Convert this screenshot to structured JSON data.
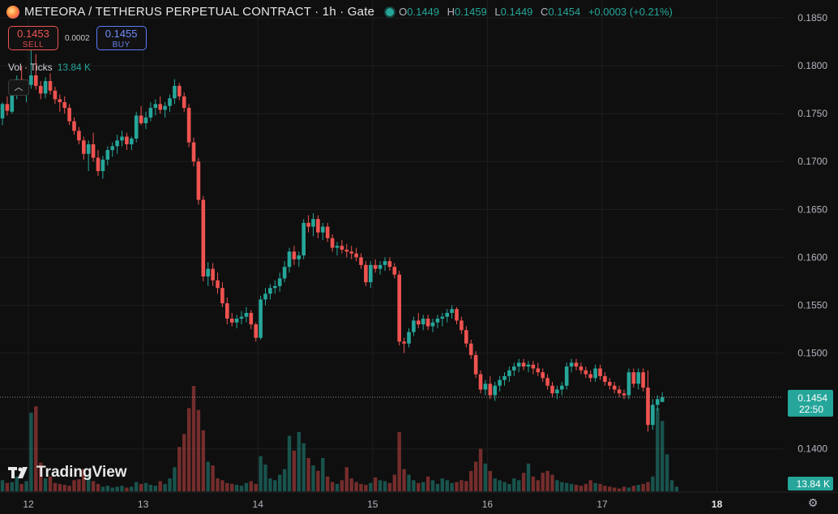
{
  "header": {
    "symbol": "METEORA / TETHERUS PERPETUAL CONTRACT · 1h · Gate",
    "o_label": "O",
    "o": "0.1449",
    "h_label": "H",
    "h": "0.1459",
    "l_label": "L",
    "l": "0.1449",
    "c_label": "C",
    "c": "0.1454",
    "change": "+0.0003 (+0.21%)"
  },
  "trade": {
    "sell_price": "0.1453",
    "sell_label": "SELL",
    "spread": "0.0002",
    "buy_price": "0.1455",
    "buy_label": "BUY"
  },
  "volume_legend": {
    "label": "Vol · Ticks",
    "value": "13.84 K"
  },
  "collapse_icon": "chevron-up-icon",
  "watermark": "TradingView",
  "colors": {
    "up": "#26a69a",
    "down": "#ef5350",
    "background": "#0f0f0f",
    "grid": "#1e1e1e",
    "text": "#b2b5be"
  },
  "chart_data": {
    "type": "candlestick",
    "timeframe": "1h",
    "ylim": [
      0.1365,
      0.186
    ],
    "y_ticks": [
      "0.1850",
      "0.1800",
      "0.1750",
      "0.1700",
      "0.1650",
      "0.1600",
      "0.1550",
      "0.1500",
      "0.1400"
    ],
    "x_ticks": [
      {
        "label": "12",
        "index": 3
      },
      {
        "label": "13",
        "index": 27
      },
      {
        "label": "14",
        "index": 51
      },
      {
        "label": "15",
        "index": 75
      },
      {
        "label": "16",
        "index": 99
      },
      {
        "label": "17",
        "index": 123
      },
      {
        "label": "18",
        "index": 147
      }
    ],
    "last_price": "0.1454",
    "countdown": "22:50",
    "volume_last": "13.84 K",
    "series": [
      {
        "name": "price",
        "ohlc": [
          [
            0.1745,
            0.1762,
            0.1738,
            0.176
          ],
          [
            0.176,
            0.1768,
            0.1748,
            0.1753
          ],
          [
            0.1752,
            0.1778,
            0.175,
            0.1772
          ],
          [
            0.1772,
            0.179,
            0.1765,
            0.1786
          ],
          [
            0.1786,
            0.18,
            0.177,
            0.1775
          ],
          [
            0.1775,
            0.1785,
            0.1762,
            0.178
          ],
          [
            0.178,
            0.183,
            0.1776,
            0.179
          ],
          [
            0.179,
            0.1812,
            0.1775,
            0.1779
          ],
          [
            0.1779,
            0.1784,
            0.1765,
            0.1771
          ],
          [
            0.1771,
            0.1788,
            0.1766,
            0.1784
          ],
          [
            0.1784,
            0.1792,
            0.177,
            0.1774
          ],
          [
            0.1774,
            0.1778,
            0.176,
            0.1765
          ],
          [
            0.1765,
            0.177,
            0.1752,
            0.1762
          ],
          [
            0.1762,
            0.1768,
            0.175,
            0.1756
          ],
          [
            0.1756,
            0.176,
            0.1738,
            0.1742
          ],
          [
            0.1742,
            0.1746,
            0.1728,
            0.1732
          ],
          [
            0.1732,
            0.1736,
            0.1718,
            0.1722
          ],
          [
            0.1722,
            0.1726,
            0.1702,
            0.1708
          ],
          [
            0.1708,
            0.1722,
            0.169,
            0.1718
          ],
          [
            0.1718,
            0.173,
            0.17,
            0.1704
          ],
          [
            0.1704,
            0.1712,
            0.1685,
            0.169
          ],
          [
            0.169,
            0.1706,
            0.1682,
            0.1702
          ],
          [
            0.1702,
            0.1716,
            0.1696,
            0.1712
          ],
          [
            0.1712,
            0.172,
            0.1705,
            0.1716
          ],
          [
            0.1716,
            0.1728,
            0.1708,
            0.1722
          ],
          [
            0.1722,
            0.1732,
            0.1716,
            0.1726
          ],
          [
            0.1726,
            0.173,
            0.1712,
            0.1718
          ],
          [
            0.1718,
            0.1726,
            0.1712,
            0.1724
          ],
          [
            0.1724,
            0.1752,
            0.172,
            0.1748
          ],
          [
            0.1748,
            0.1758,
            0.1738,
            0.174
          ],
          [
            0.174,
            0.1752,
            0.1734,
            0.1746
          ],
          [
            0.1746,
            0.1762,
            0.1742,
            0.1756
          ],
          [
            0.1756,
            0.1765,
            0.1748,
            0.176
          ],
          [
            0.176,
            0.1768,
            0.175,
            0.1754
          ],
          [
            0.1754,
            0.1762,
            0.1746,
            0.1758
          ],
          [
            0.1758,
            0.177,
            0.1752,
            0.1766
          ],
          [
            0.1766,
            0.1786,
            0.176,
            0.1779
          ],
          [
            0.1779,
            0.1782,
            0.1764,
            0.1768
          ],
          [
            0.1768,
            0.1772,
            0.1752,
            0.1756
          ],
          [
            0.1756,
            0.176,
            0.1715,
            0.172
          ],
          [
            0.172,
            0.1725,
            0.1695,
            0.17
          ],
          [
            0.17,
            0.1704,
            0.1655,
            0.166
          ],
          [
            0.166,
            0.1664,
            0.1575,
            0.158
          ],
          [
            0.158,
            0.1595,
            0.157,
            0.1588
          ],
          [
            0.1588,
            0.1594,
            0.157,
            0.1576
          ],
          [
            0.1576,
            0.1584,
            0.1562,
            0.1568
          ],
          [
            0.1568,
            0.1574,
            0.1548,
            0.1552
          ],
          [
            0.1552,
            0.1558,
            0.153,
            0.1536
          ],
          [
            0.1536,
            0.1542,
            0.1528,
            0.1532
          ],
          [
            0.1532,
            0.154,
            0.1526,
            0.1536
          ],
          [
            0.1536,
            0.1544,
            0.153,
            0.1538
          ],
          [
            0.1538,
            0.1548,
            0.1532,
            0.1542
          ],
          [
            0.1542,
            0.1545,
            0.1525,
            0.153
          ],
          [
            0.153,
            0.1532,
            0.1512,
            0.1516
          ],
          [
            0.1516,
            0.156,
            0.1514,
            0.1556
          ],
          [
            0.1556,
            0.1568,
            0.155,
            0.1562
          ],
          [
            0.1562,
            0.1572,
            0.1556,
            0.1568
          ],
          [
            0.1568,
            0.1576,
            0.1562,
            0.157
          ],
          [
            0.157,
            0.1584,
            0.1564,
            0.1578
          ],
          [
            0.1578,
            0.1596,
            0.1574,
            0.159
          ],
          [
            0.159,
            0.161,
            0.1584,
            0.1606
          ],
          [
            0.1606,
            0.1612,
            0.1592,
            0.1598
          ],
          [
            0.1598,
            0.1606,
            0.159,
            0.1602
          ],
          [
            0.1602,
            0.164,
            0.1598,
            0.1636
          ],
          [
            0.1636,
            0.1644,
            0.1626,
            0.1632
          ],
          [
            0.1632,
            0.1646,
            0.1622,
            0.164
          ],
          [
            0.164,
            0.1644,
            0.162,
            0.1626
          ],
          [
            0.1626,
            0.1636,
            0.1618,
            0.1632
          ],
          [
            0.1632,
            0.1636,
            0.1616,
            0.162
          ],
          [
            0.162,
            0.1624,
            0.1606,
            0.161
          ],
          [
            0.161,
            0.1616,
            0.1602,
            0.1612
          ],
          [
            0.1612,
            0.1618,
            0.1604,
            0.1608
          ],
          [
            0.1608,
            0.1614,
            0.16,
            0.1606
          ],
          [
            0.1606,
            0.1612,
            0.1598,
            0.1604
          ],
          [
            0.1604,
            0.161,
            0.1596,
            0.16
          ],
          [
            0.16,
            0.1604,
            0.1588,
            0.1592
          ],
          [
            0.1592,
            0.1596,
            0.157,
            0.1574
          ],
          [
            0.1574,
            0.1596,
            0.1568,
            0.1592
          ],
          [
            0.1592,
            0.1598,
            0.1584,
            0.1588
          ],
          [
            0.1588,
            0.1596,
            0.1582,
            0.1592
          ],
          [
            0.1592,
            0.16,
            0.1586,
            0.1596
          ],
          [
            0.1596,
            0.16,
            0.1586,
            0.159
          ],
          [
            0.159,
            0.1594,
            0.1578,
            0.1582
          ],
          [
            0.1582,
            0.1586,
            0.1508,
            0.1512
          ],
          [
            0.1512,
            0.1516,
            0.15,
            0.151
          ],
          [
            0.151,
            0.1526,
            0.1506,
            0.1522
          ],
          [
            0.1522,
            0.1538,
            0.1518,
            0.1534
          ],
          [
            0.1534,
            0.1542,
            0.1526,
            0.153
          ],
          [
            0.153,
            0.154,
            0.1524,
            0.1536
          ],
          [
            0.1536,
            0.154,
            0.1524,
            0.1528
          ],
          [
            0.1528,
            0.1536,
            0.1522,
            0.1532
          ],
          [
            0.1532,
            0.154,
            0.1526,
            0.1536
          ],
          [
            0.1536,
            0.1542,
            0.1528,
            0.1538
          ],
          [
            0.1538,
            0.1546,
            0.1532,
            0.1542
          ],
          [
            0.1542,
            0.155,
            0.1536,
            0.1546
          ],
          [
            0.1546,
            0.1548,
            0.153,
            0.1534
          ],
          [
            0.1534,
            0.1538,
            0.152,
            0.1524
          ],
          [
            0.1524,
            0.1528,
            0.1506,
            0.151
          ],
          [
            0.151,
            0.1514,
            0.1494,
            0.1498
          ],
          [
            0.1498,
            0.1502,
            0.1474,
            0.1478
          ],
          [
            0.1478,
            0.1482,
            0.1458,
            0.1462
          ],
          [
            0.1462,
            0.1472,
            0.1456,
            0.1468
          ],
          [
            0.1468,
            0.1476,
            0.1452,
            0.1456
          ],
          [
            0.1456,
            0.147,
            0.145,
            0.1466
          ],
          [
            0.1466,
            0.1476,
            0.146,
            0.1472
          ],
          [
            0.1472,
            0.148,
            0.1466,
            0.1476
          ],
          [
            0.1476,
            0.1486,
            0.147,
            0.1482
          ],
          [
            0.1482,
            0.149,
            0.1476,
            0.1486
          ],
          [
            0.1486,
            0.1494,
            0.148,
            0.149
          ],
          [
            0.149,
            0.1494,
            0.1482,
            0.1486
          ],
          [
            0.1486,
            0.1492,
            0.148,
            0.1488
          ],
          [
            0.1488,
            0.1492,
            0.1478,
            0.1484
          ],
          [
            0.1484,
            0.149,
            0.1476,
            0.148
          ],
          [
            0.148,
            0.1484,
            0.147,
            0.1474
          ],
          [
            0.1474,
            0.1478,
            0.1462,
            0.1466
          ],
          [
            0.1466,
            0.147,
            0.1454,
            0.1458
          ],
          [
            0.1458,
            0.1466,
            0.1452,
            0.1462
          ],
          [
            0.1462,
            0.147,
            0.1456,
            0.1466
          ],
          [
            0.1466,
            0.149,
            0.1462,
            0.1486
          ],
          [
            0.1486,
            0.1494,
            0.148,
            0.149
          ],
          [
            0.149,
            0.1494,
            0.1482,
            0.1486
          ],
          [
            0.1486,
            0.149,
            0.1478,
            0.1482
          ],
          [
            0.1482,
            0.1486,
            0.1474,
            0.1478
          ],
          [
            0.1478,
            0.1482,
            0.147,
            0.1474
          ],
          [
            0.1474,
            0.1488,
            0.147,
            0.1484
          ],
          [
            0.1484,
            0.1488,
            0.1472,
            0.1476
          ],
          [
            0.1476,
            0.148,
            0.1466,
            0.147
          ],
          [
            0.147,
            0.1474,
            0.1462,
            0.1466
          ],
          [
            0.1466,
            0.147,
            0.1458,
            0.1462
          ],
          [
            0.1462,
            0.1466,
            0.1454,
            0.1458
          ],
          [
            0.1458,
            0.1462,
            0.1452,
            0.1456
          ],
          [
            0.1456,
            0.1484,
            0.1452,
            0.148
          ],
          [
            0.148,
            0.1484,
            0.1464,
            0.1468
          ],
          [
            0.1468,
            0.1484,
            0.1462,
            0.148
          ],
          [
            0.148,
            0.1484,
            0.146,
            0.1464
          ],
          [
            0.1464,
            0.1482,
            0.1418,
            0.1425
          ],
          [
            0.1425,
            0.1452,
            0.142,
            0.1446
          ],
          [
            0.1446,
            0.1456,
            0.144,
            0.1452
          ],
          [
            0.1449,
            0.1459,
            0.1449,
            0.1454
          ]
        ]
      },
      {
        "name": "volume",
        "values": [
          1.2,
          0.9,
          1.0,
          1.6,
          0.8,
          1.1,
          8.5,
          9.2,
          3.1,
          1.4,
          1.6,
          0.9,
          0.8,
          0.7,
          0.6,
          1.2,
          1.3,
          2.4,
          1.8,
          1.1,
          0.8,
          0.5,
          0.6,
          0.4,
          0.5,
          0.6,
          0.4,
          0.5,
          1.0,
          0.8,
          0.9,
          0.7,
          0.6,
          1.1,
          0.8,
          1.4,
          2.6,
          4.8,
          6.2,
          9.0,
          11.4,
          8.8,
          6.6,
          3.2,
          2.8,
          1.4,
          1.2,
          0.9,
          0.8,
          0.7,
          0.6,
          0.9,
          1.1,
          0.8,
          3.8,
          2.9,
          1.4,
          1.2,
          1.8,
          2.4,
          6.0,
          4.4,
          6.4,
          5.2,
          3.6,
          2.8,
          2.2,
          3.6,
          1.6,
          1.0,
          0.8,
          1.2,
          2.6,
          1.4,
          1.0,
          0.8,
          0.7,
          0.9,
          1.5,
          1.2,
          1.1,
          0.9,
          1.8,
          6.4,
          2.4,
          1.8,
          1.2,
          0.9,
          1.0,
          1.6,
          1.2,
          0.8,
          1.4,
          1.2,
          0.9,
          1.0,
          1.2,
          1.1,
          2.2,
          3.2,
          4.6,
          3.0,
          2.2,
          1.4,
          1.2,
          1.0,
          0.8,
          1.4,
          1.2,
          2.0,
          3.0,
          1.6,
          1.2,
          2.0,
          2.2,
          1.8,
          1.2,
          1.0,
          0.9,
          0.8,
          0.7,
          0.6,
          0.8,
          1.2,
          0.9,
          0.8,
          0.6,
          0.5,
          0.4,
          0.3,
          0.5,
          0.4,
          0.6,
          0.7,
          0.8,
          1.0,
          1.6,
          9.0,
          7.6,
          4.0,
          1.2,
          0.5
        ]
      }
    ]
  }
}
